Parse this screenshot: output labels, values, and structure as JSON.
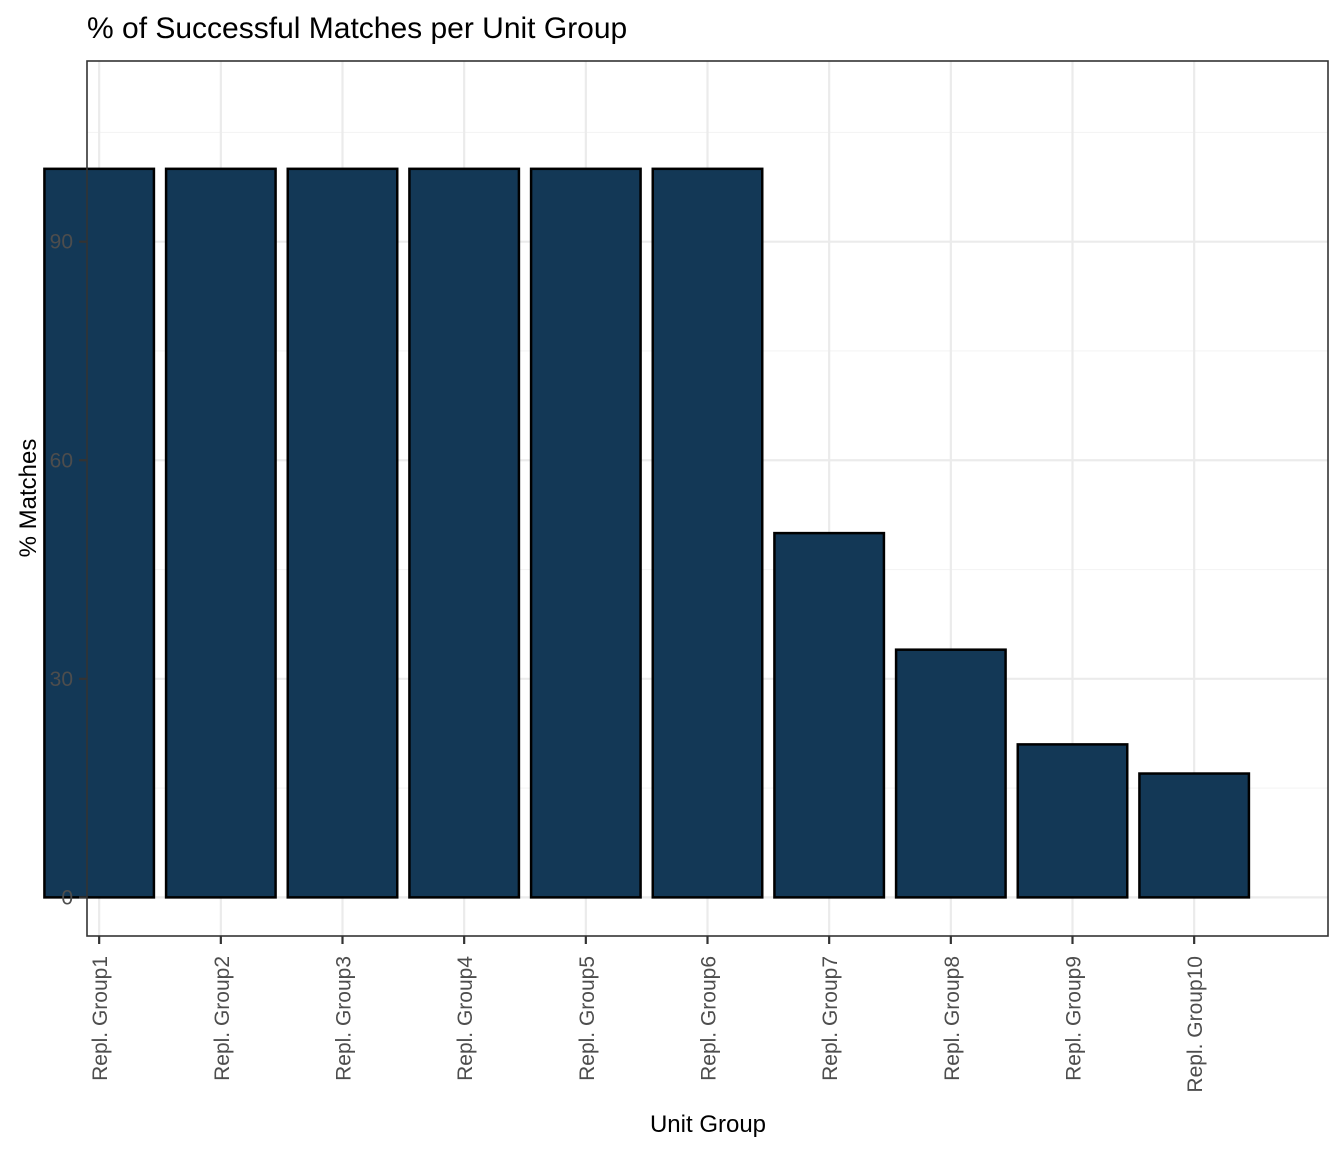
{
  "chart_data": {
    "type": "bar",
    "title": "% of Successful Matches per Unit Group",
    "xlabel": "Unit Group",
    "ylabel": "% Matches",
    "categories": [
      "Repl. Group1",
      "Repl. Group2",
      "Repl. Group3",
      "Repl. Group4",
      "Repl. Group5",
      "Repl. Group6",
      "Repl. Group7",
      "Repl. Group8",
      "Repl. Group9",
      "Repl. Group10"
    ],
    "values": [
      100,
      100,
      100,
      100,
      100,
      100,
      50,
      34,
      21,
      17
    ],
    "ylim": [
      -5.3,
      114.8
    ],
    "yticks": [
      0,
      30,
      60,
      90
    ],
    "ytick_labels": [
      "0",
      "30",
      "60",
      "90"
    ],
    "grid": true,
    "legend": "none",
    "colors": {
      "bar_fill": "#133856",
      "bar_outline": "#000000",
      "panel_border": "#333333"
    }
  }
}
